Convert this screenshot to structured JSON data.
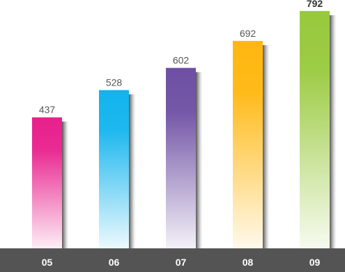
{
  "chart_data": {
    "type": "bar",
    "title": "",
    "xlabel": "",
    "ylabel": "",
    "categories": [
      "05",
      "06",
      "07",
      "08",
      "09"
    ],
    "values": [
      437,
      528,
      602,
      692,
      792
    ],
    "value_labels": [
      "437",
      "528",
      "602",
      "692",
      "792"
    ],
    "ylim": [
      0,
      810
    ],
    "grid": false,
    "legend": "none",
    "bar_colors": [
      "#e8208c",
      "#12b4ee",
      "#6e4fa3",
      "#ffb70f",
      "#98c93c"
    ],
    "baseline_band_color": "#545454"
  }
}
